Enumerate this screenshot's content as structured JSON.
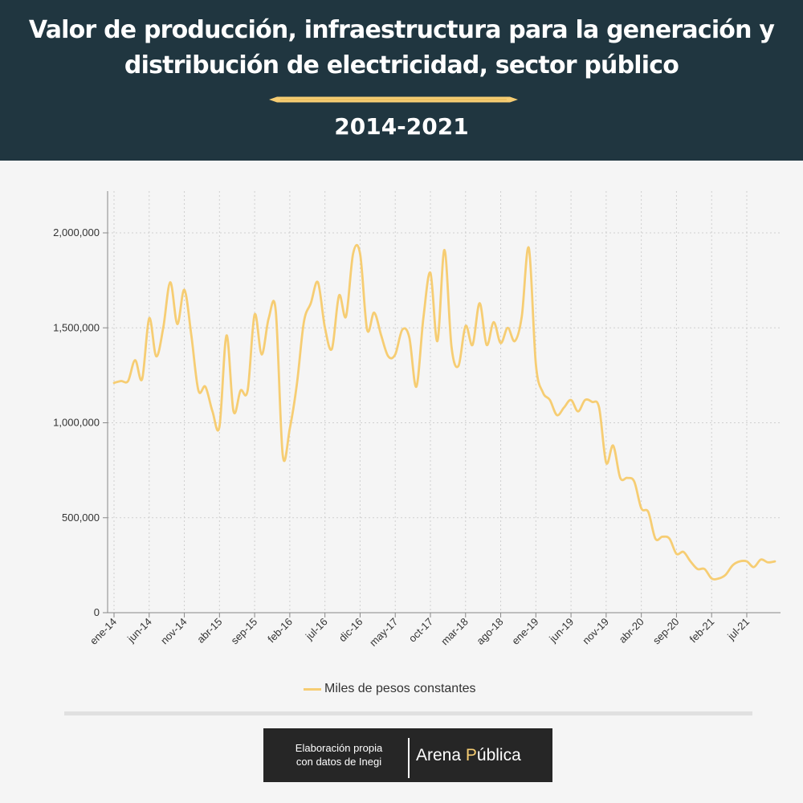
{
  "header": {
    "title": "Valor de producción, infraestructura para la generación y distribución de electricidad, sector público",
    "subtitle": "2014-2021"
  },
  "colors": {
    "header_bg": "#203640",
    "series": "#f6cd73",
    "accent": "#f6cd73",
    "credit_bg": "#262626"
  },
  "chart_data": {
    "type": "line",
    "title": "Valor de producción, infraestructura para la generación y distribución de electricidad, sector público",
    "subtitle": "2014-2021",
    "ylim": [
      0,
      2200000
    ],
    "yticks": [
      0,
      500000,
      1000000,
      1500000,
      2000000
    ],
    "ytick_labels": [
      "0",
      "500,000",
      "1,000,000",
      "1,500,000",
      "2,000,000"
    ],
    "xtick_labels": [
      "ene-14",
      "jun-14",
      "nov-14",
      "abr-15",
      "sep-15",
      "feb-16",
      "jul-16",
      "dic-16",
      "may-17",
      "oct-17",
      "mar-18",
      "ago-18",
      "ene-19",
      "jun-19",
      "nov-19",
      "abr-20",
      "sep-20",
      "feb-21",
      "jul-21"
    ],
    "legend_position": "bottom-center",
    "grid": true,
    "series": [
      {
        "name": "Miles de pesos constantes",
        "values": [
          1210000,
          1220000,
          1220000,
          1330000,
          1230000,
          1550000,
          1350000,
          1500000,
          1740000,
          1520000,
          1700000,
          1460000,
          1170000,
          1190000,
          1060000,
          980000,
          1460000,
          1060000,
          1170000,
          1170000,
          1570000,
          1360000,
          1550000,
          1590000,
          830000,
          970000,
          1200000,
          1530000,
          1630000,
          1740000,
          1500000,
          1390000,
          1670000,
          1560000,
          1890000,
          1890000,
          1490000,
          1580000,
          1460000,
          1350000,
          1360000,
          1490000,
          1450000,
          1190000,
          1550000,
          1790000,
          1430000,
          1910000,
          1400000,
          1300000,
          1510000,
          1410000,
          1630000,
          1410000,
          1530000,
          1420000,
          1500000,
          1430000,
          1560000,
          1920000,
          1310000,
          1160000,
          1120000,
          1040000,
          1080000,
          1120000,
          1060000,
          1120000,
          1110000,
          1080000,
          790000,
          880000,
          710000,
          710000,
          690000,
          550000,
          530000,
          390000,
          400000,
          390000,
          310000,
          320000,
          270000,
          230000,
          230000,
          180000,
          180000,
          200000,
          250000,
          270000,
          270000,
          240000,
          280000,
          265000,
          270000
        ]
      }
    ]
  },
  "legend": {
    "label": "Miles de pesos constantes"
  },
  "credit": {
    "line1": "Elaboración propia",
    "line2": "con datos de Inegi",
    "brand_part1": "Arena ",
    "brand_accent": "P",
    "brand_part2": "ública"
  }
}
